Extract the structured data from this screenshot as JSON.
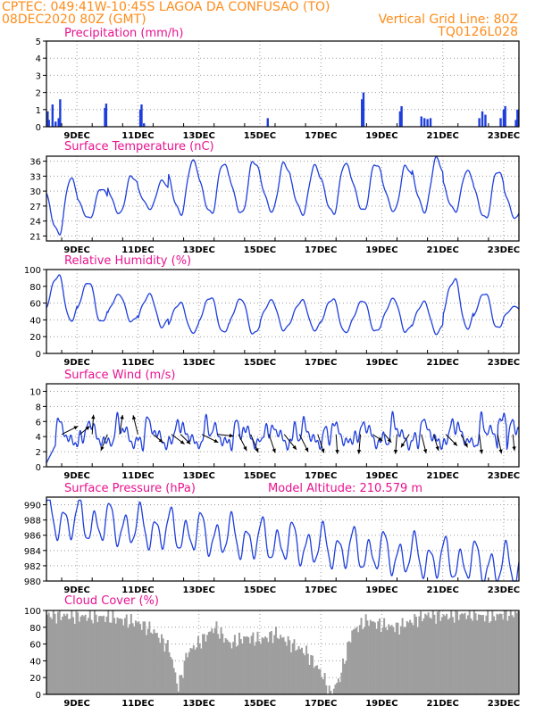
{
  "header": {
    "line1_left": "CPTEC:  049:41W-10:45S  LAGOA DA CONFUSAO (TO)",
    "line2_left": "08DEC2020 80Z (GMT)",
    "line2_right": "Vertical Grid Line: 80Z",
    "line3_right": "TQ0126L028"
  },
  "colors": {
    "header": "#ff8c1a",
    "title": "#e8128f",
    "line": "#1f3fdc",
    "cloud": "#9e9e9e",
    "arrow": "#000000"
  },
  "chart_data": [
    {
      "id": "precip",
      "type": "bar",
      "title": "Precipitation (mm/h)",
      "xlim": [
        0,
        15.5
      ],
      "ylim": [
        0,
        5
      ],
      "yticks": [
        0,
        1,
        2,
        3,
        4,
        5
      ],
      "x_tick_labels": [
        "9DEC",
        "11DEC",
        "13DEC",
        "15DEC",
        "17DEC",
        "19DEC",
        "21DEC",
        "23DEC"
      ],
      "x_tick_positions": [
        1,
        3,
        5,
        7,
        9,
        11,
        13,
        15
      ],
      "x": [
        0.04,
        0.08,
        0.2,
        0.3,
        0.4,
        0.45,
        1.92,
        1.96,
        3.08,
        3.12,
        3.2,
        7.26,
        10.35,
        10.4,
        11.6,
        11.65,
        12.3,
        12.4,
        12.5,
        12.6,
        14.2,
        14.3,
        14.4,
        14.9,
        15.0,
        15.05,
        15.4,
        15.45
      ],
      "values": [
        0.9,
        0.4,
        1.3,
        0.3,
        0.5,
        1.6,
        1.1,
        1.35,
        1.0,
        1.3,
        0.2,
        0.5,
        1.6,
        2.0,
        0.9,
        1.2,
        0.6,
        0.5,
        0.45,
        0.5,
        0.5,
        0.9,
        0.7,
        0.5,
        1.0,
        1.2,
        0.4,
        1.0
      ]
    },
    {
      "id": "temp",
      "type": "line",
      "title": "Surface Temperature (nC)",
      "xlim": [
        0,
        15.5
      ],
      "ylim": [
        20,
        37
      ],
      "yticks": [
        21,
        24,
        27,
        30,
        33,
        36
      ],
      "x_tick_labels": [
        "9DEC",
        "11DEC",
        "13DEC",
        "15DEC",
        "17DEC",
        "19DEC",
        "21DEC",
        "23DEC"
      ],
      "x_tick_positions": [
        1,
        3,
        5,
        7,
        9,
        11,
        13,
        15
      ],
      "mins": [
        21.5,
        24.5,
        25.5,
        26.5,
        25.5,
        25.5,
        25.5,
        26.0,
        25.5,
        25.5,
        26.0,
        26.0,
        26.0,
        26.0,
        24.5,
        24.5
      ],
      "maxs": [
        32.5,
        30.5,
        33.0,
        32.0,
        36.0,
        35.5,
        36.0,
        35.5,
        35.0,
        35.5,
        35.5,
        35.0,
        36.5,
        34.0,
        34.0,
        33.0
      ]
    },
    {
      "id": "rh",
      "type": "line",
      "title": "Relative Humidity (%)",
      "xlim": [
        0,
        15.5
      ],
      "ylim": [
        0,
        100
      ],
      "yticks": [
        0,
        20,
        40,
        60,
        80,
        100
      ],
      "x_tick_labels": [
        "9DEC",
        "11DEC",
        "13DEC",
        "15DEC",
        "17DEC",
        "19DEC",
        "21DEC",
        "23DEC"
      ],
      "x_tick_positions": [
        1,
        3,
        5,
        7,
        9,
        11,
        13,
        15
      ],
      "mins": [
        39,
        37,
        38,
        32,
        25,
        25,
        23,
        28,
        28,
        25,
        26,
        26,
        24,
        30,
        30,
        38
      ],
      "maxs": [
        93,
        85,
        70,
        70,
        60,
        67,
        65,
        63,
        63,
        65,
        63,
        65,
        61,
        88,
        72,
        56
      ]
    },
    {
      "id": "wind",
      "type": "line",
      "title": "Surface Wind (m/s)",
      "xlim": [
        0,
        15.5
      ],
      "ylim": [
        0,
        11
      ],
      "yticks": [
        0,
        2,
        4,
        6,
        8,
        10
      ],
      "x_tick_labels": [
        "9DEC",
        "11DEC",
        "13DEC",
        "15DEC",
        "17DEC",
        "19DEC",
        "21DEC",
        "23DEC"
      ],
      "x_tick_positions": [
        1,
        3,
        5,
        7,
        9,
        11,
        13,
        15
      ],
      "arrows": [
        {
          "x": 0.5,
          "u": 1.0,
          "v": -0.5
        },
        {
          "x": 1.1,
          "u": 0.6,
          "v": -0.5
        },
        {
          "x": 1.5,
          "u": 0.1,
          "v": -1.5
        },
        {
          "x": 2.0,
          "u": -0.4,
          "v": 1.0
        },
        {
          "x": 2.4,
          "u": 0.2,
          "v": -1.3
        },
        {
          "x": 3.0,
          "u": -0.3,
          "v": -1.2
        },
        {
          "x": 3.5,
          "u": 0.6,
          "v": 0.5
        },
        {
          "x": 4.1,
          "u": 0.8,
          "v": 0.6
        },
        {
          "x": 4.4,
          "u": 0.6,
          "v": 0.6
        },
        {
          "x": 5.1,
          "u": 1.0,
          "v": 0.5
        },
        {
          "x": 5.6,
          "u": 1.0,
          "v": 0.1
        },
        {
          "x": 6.3,
          "u": 0.5,
          "v": 1.0
        },
        {
          "x": 6.7,
          "u": 0.5,
          "v": 1.2
        },
        {
          "x": 7.3,
          "u": 0.5,
          "v": 1.5
        },
        {
          "x": 7.8,
          "u": 0.8,
          "v": 1.0
        },
        {
          "x": 8.3,
          "u": 0.6,
          "v": 1.2
        },
        {
          "x": 8.9,
          "u": 0.4,
          "v": 1.2
        },
        {
          "x": 9.5,
          "u": 0.1,
          "v": 1.4
        },
        {
          "x": 10.3,
          "u": -0.1,
          "v": 1.2
        },
        {
          "x": 10.7,
          "u": 0.6,
          "v": 0.4
        },
        {
          "x": 11.1,
          "u": 0.4,
          "v": 0.5
        },
        {
          "x": 11.5,
          "u": -0.1,
          "v": 1.2
        },
        {
          "x": 11.9,
          "u": -0.5,
          "v": 0.8
        },
        {
          "x": 12.3,
          "u": 0.3,
          "v": 1.2
        },
        {
          "x": 12.7,
          "u": 0.3,
          "v": 1.0
        },
        {
          "x": 13.1,
          "u": 0.7,
          "v": 0.7
        },
        {
          "x": 13.6,
          "u": 0.4,
          "v": 0.8
        },
        {
          "x": 14.2,
          "u": 0.2,
          "v": 1.6
        },
        {
          "x": 14.8,
          "u": 0.3,
          "v": 1.5
        },
        {
          "x": 15.3,
          "u": 0.1,
          "v": 1.0
        }
      ]
    },
    {
      "id": "press",
      "type": "line",
      "title": "Surface Pressure (hPa)",
      "note": "Model Altitude: 210.579 m",
      "xlim": [
        0,
        15.5
      ],
      "ylim": [
        980,
        991
      ],
      "yticks": [
        980,
        982,
        984,
        986,
        988,
        990
      ],
      "x_tick_labels": [
        "9DEC",
        "11DEC",
        "13DEC",
        "15DEC",
        "17DEC",
        "19DEC",
        "21DEC",
        "23DEC"
      ],
      "x_tick_positions": [
        1,
        3,
        5,
        7,
        9,
        11,
        13,
        15
      ]
    },
    {
      "id": "cloud",
      "type": "bar",
      "title": "Cloud Cover (%)",
      "xlim": [
        0,
        15.5
      ],
      "ylim": [
        0,
        100
      ],
      "yticks": [
        0,
        20,
        40,
        60,
        80,
        100
      ],
      "x_tick_labels": [
        "9DEC",
        "11DEC",
        "13DEC",
        "15DEC",
        "17DEC",
        "19DEC",
        "21DEC",
        "23DEC"
      ],
      "x_tick_positions": [
        1,
        3,
        5,
        7,
        9,
        11,
        13,
        15
      ],
      "x": [
        0,
        1,
        2,
        3,
        3.5,
        4,
        4.3,
        4.6,
        5,
        5.5,
        6,
        6.5,
        7,
        7.5,
        8,
        8.5,
        9,
        9.3,
        9.6,
        10,
        10.5,
        11,
        11.5,
        12,
        12.5,
        13,
        13.5,
        14,
        14.5,
        15,
        15.5
      ],
      "values": [
        95,
        93,
        92,
        85,
        75,
        55,
        8,
        50,
        62,
        80,
        60,
        68,
        65,
        72,
        60,
        50,
        25,
        0,
        20,
        75,
        88,
        82,
        80,
        88,
        95,
        93,
        95,
        95,
        92,
        96,
        97
      ]
    }
  ]
}
